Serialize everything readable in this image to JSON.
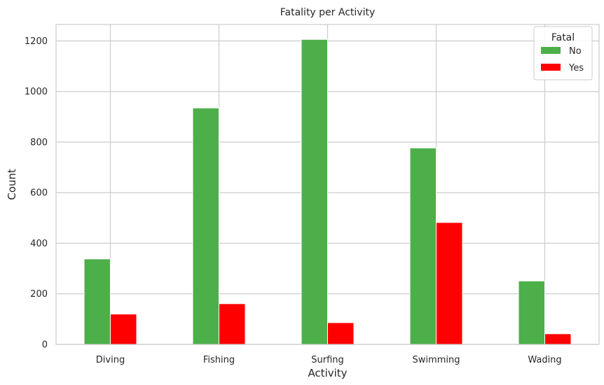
{
  "chart_data": {
    "type": "bar",
    "title": "Fatality per Activity",
    "xlabel": "Activity",
    "ylabel": "Count",
    "categories": [
      "Diving",
      "Fishing",
      "Surfing",
      "Swimming",
      "Wading"
    ],
    "series": [
      {
        "name": "No",
        "color": "#4daf4a",
        "values": [
          338,
          935,
          1206,
          777,
          251
        ]
      },
      {
        "name": "Yes",
        "color": "#ff0000",
        "values": [
          120,
          161,
          86,
          482,
          42
        ]
      }
    ],
    "ylim": [
      0,
      1265
    ],
    "yticks": [
      0,
      200,
      400,
      600,
      800,
      1000,
      1200
    ],
    "grid": true,
    "legend": {
      "title": "Fatal",
      "placement": "top-right"
    }
  }
}
